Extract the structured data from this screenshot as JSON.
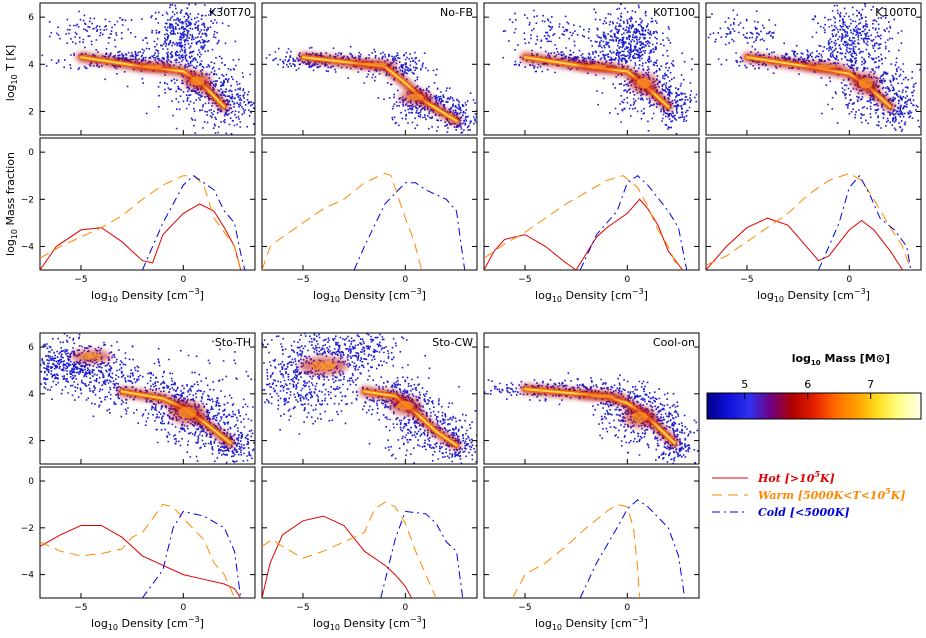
{
  "chart_data": {
    "type": "multi-panel",
    "xlabel_prefix": "log",
    "xlabel_sub": "10",
    "xlabel_main": " Density [cm",
    "xlabel_sup": "−3",
    "xlabel_close": "]",
    "ylabel_top": {
      "prefix": "log",
      "sub": "10",
      "main": " T [K]"
    },
    "ylabel_bottom": {
      "prefix": "log",
      "sub": "10",
      "main": " Mass fraction"
    },
    "xlim": [
      -7,
      3.5
    ],
    "phase_ylim": [
      1,
      6.6
    ],
    "frac_ylim": [
      -5,
      0.6
    ],
    "x_ticks": [
      -5,
      0
    ],
    "phase_y_ticks": [
      2,
      4,
      6
    ],
    "frac_y_ticks": [
      -4,
      -2,
      0
    ],
    "panels": [
      {
        "label": "K30T70",
        "row": 0,
        "col": 0,
        "hot": [
          [
            -7,
            -5
          ],
          [
            -6.2,
            -4
          ],
          [
            -5,
            -3.3
          ],
          [
            -4,
            -3.2
          ],
          [
            -3,
            -3.8
          ],
          [
            -2,
            -4.6
          ],
          [
            -1.5,
            -4.7
          ],
          [
            -1,
            -3.5
          ],
          [
            0,
            -2.6
          ],
          [
            0.8,
            -2.2
          ],
          [
            1.5,
            -2.5
          ],
          [
            2,
            -3.2
          ],
          [
            2.5,
            -4
          ],
          [
            2.8,
            -5
          ]
        ],
        "warm": [
          [
            -7,
            -4.5
          ],
          [
            -6,
            -4
          ],
          [
            -5,
            -3.6
          ],
          [
            -4,
            -3.2
          ],
          [
            -3,
            -2.7
          ],
          [
            -2,
            -2
          ],
          [
            -1,
            -1.4
          ],
          [
            0,
            -1
          ],
          [
            0.5,
            -1
          ],
          [
            1,
            -1.4
          ],
          [
            1.5,
            -2.8
          ],
          [
            2,
            -3.4
          ],
          [
            2.5,
            -4
          ],
          [
            2.8,
            -5
          ]
        ],
        "cold": [
          [
            -2,
            -5
          ],
          [
            -1,
            -3
          ],
          [
            0,
            -1.4
          ],
          [
            0.5,
            -1
          ],
          [
            1,
            -1.3
          ],
          [
            1.5,
            -1.6
          ],
          [
            2,
            -2.5
          ],
          [
            2.5,
            -3
          ],
          [
            2.8,
            -4.3
          ],
          [
            3,
            -5
          ]
        ]
      },
      {
        "label": "No-FB",
        "row": 0,
        "col": 1,
        "hot": [],
        "warm": [
          [
            -7,
            -5
          ],
          [
            -6.6,
            -4
          ],
          [
            -6,
            -3.6
          ],
          [
            -5,
            -3
          ],
          [
            -4,
            -2.4
          ],
          [
            -3,
            -2
          ],
          [
            -2,
            -1.3
          ],
          [
            -1,
            -0.9
          ],
          [
            -0.7,
            -1
          ],
          [
            0,
            -2.8
          ],
          [
            0.4,
            -3.7
          ],
          [
            0.8,
            -5
          ]
        ],
        "cold": [
          [
            -2.5,
            -5
          ],
          [
            -2,
            -4
          ],
          [
            -1,
            -2.2
          ],
          [
            0,
            -1.3
          ],
          [
            0.5,
            -1.3
          ],
          [
            1,
            -1.6
          ],
          [
            2,
            -2
          ],
          [
            2.5,
            -2.5
          ],
          [
            2.9,
            -5
          ]
        ]
      },
      {
        "label": "K0T100",
        "row": 0,
        "col": 2,
        "hot": [
          [
            -7,
            -5
          ],
          [
            -6.5,
            -4.2
          ],
          [
            -6,
            -3.7
          ],
          [
            -5,
            -3.5
          ],
          [
            -4,
            -4
          ],
          [
            -3,
            -4.7
          ],
          [
            -2.5,
            -5
          ],
          [
            -1.5,
            -3.6
          ],
          [
            -1,
            -3.2
          ],
          [
            0,
            -2.6
          ],
          [
            0.6,
            -2
          ],
          [
            1,
            -2.4
          ],
          [
            1.5,
            -3.1
          ],
          [
            2,
            -4.2
          ],
          [
            2.7,
            -5
          ]
        ],
        "warm": [
          [
            -7,
            -4.5
          ],
          [
            -6,
            -3.9
          ],
          [
            -5,
            -3.4
          ],
          [
            -4,
            -2.8
          ],
          [
            -3,
            -2.2
          ],
          [
            -2,
            -1.7
          ],
          [
            -1,
            -1.2
          ],
          [
            -0.2,
            -1
          ],
          [
            0.5,
            -1.5
          ],
          [
            1,
            -2.3
          ],
          [
            1.5,
            -3.3
          ],
          [
            2,
            -4
          ],
          [
            2.5,
            -5
          ]
        ],
        "cold": [
          [
            -2.3,
            -5
          ],
          [
            -1.5,
            -3.5
          ],
          [
            -0.5,
            -2.5
          ],
          [
            0,
            -1.3
          ],
          [
            0.5,
            -1
          ],
          [
            1,
            -1.4
          ],
          [
            2,
            -2.5
          ],
          [
            2.5,
            -3.2
          ],
          [
            2.9,
            -5
          ]
        ]
      },
      {
        "label": "K100T0",
        "row": 0,
        "col": 3,
        "hot": [
          [
            -7,
            -5
          ],
          [
            -6,
            -4
          ],
          [
            -5,
            -3.2
          ],
          [
            -4,
            -2.8
          ],
          [
            -3,
            -3.1
          ],
          [
            -2,
            -4.1
          ],
          [
            -1.5,
            -4.6
          ],
          [
            -1,
            -4.4
          ],
          [
            0,
            -3.3
          ],
          [
            0.6,
            -2.9
          ],
          [
            1.2,
            -3.3
          ],
          [
            2,
            -4.2
          ],
          [
            2.6,
            -5
          ]
        ],
        "warm": [
          [
            -7,
            -4.8
          ],
          [
            -6,
            -4.4
          ],
          [
            -5,
            -3.8
          ],
          [
            -4,
            -3.2
          ],
          [
            -3,
            -2.6
          ],
          [
            -2,
            -1.8
          ],
          [
            -1,
            -1.2
          ],
          [
            0,
            -0.9
          ],
          [
            0.6,
            -1.2
          ],
          [
            1.2,
            -2
          ],
          [
            2,
            -3.2
          ],
          [
            2.6,
            -4
          ],
          [
            3,
            -5
          ]
        ],
        "cold": [
          [
            -1.5,
            -5
          ],
          [
            -0.5,
            -3
          ],
          [
            0,
            -1.5
          ],
          [
            0.5,
            -1
          ],
          [
            1,
            -1.8
          ],
          [
            1.5,
            -2.8
          ],
          [
            2.2,
            -3.3
          ],
          [
            2.8,
            -4
          ],
          [
            3,
            -5
          ]
        ]
      },
      {
        "label": "Sto-TH",
        "row": 1,
        "col": 0,
        "hot": [
          [
            -7,
            -2.8
          ],
          [
            -6,
            -2.3
          ],
          [
            -5,
            -1.9
          ],
          [
            -4,
            -1.9
          ],
          [
            -3,
            -2.4
          ],
          [
            -2,
            -3.2
          ],
          [
            -1,
            -3.6
          ],
          [
            0,
            -4
          ],
          [
            1,
            -4.2
          ],
          [
            2,
            -4.4
          ],
          [
            2.5,
            -4.6
          ],
          [
            2.8,
            -5
          ]
        ],
        "warm": [
          [
            -7,
            -2.6
          ],
          [
            -6,
            -3
          ],
          [
            -5,
            -3.2
          ],
          [
            -4,
            -3.1
          ],
          [
            -3,
            -2.9
          ],
          [
            -2.5,
            -2.4
          ],
          [
            -2,
            -2.2
          ],
          [
            -1,
            -1
          ],
          [
            -0.5,
            -1.1
          ],
          [
            0,
            -1.6
          ],
          [
            1,
            -2.5
          ],
          [
            1.5,
            -3.5
          ],
          [
            2,
            -4
          ],
          [
            2.5,
            -5
          ]
        ],
        "cold": [
          [
            -2,
            -5
          ],
          [
            -1,
            -3.8
          ],
          [
            -0.5,
            -2
          ],
          [
            0,
            -1.3
          ],
          [
            1,
            -1.5
          ],
          [
            2,
            -2
          ],
          [
            2.5,
            -3
          ],
          [
            2.8,
            -5
          ]
        ]
      },
      {
        "label": "Sto-CW",
        "row": 1,
        "col": 1,
        "hot": [
          [
            -7,
            -5
          ],
          [
            -6.6,
            -3.5
          ],
          [
            -6,
            -2.3
          ],
          [
            -5,
            -1.7
          ],
          [
            -4,
            -1.5
          ],
          [
            -3,
            -1.9
          ],
          [
            -2,
            -3
          ],
          [
            -1,
            -3.6
          ],
          [
            -0.5,
            -4
          ],
          [
            0,
            -4.5
          ],
          [
            0.3,
            -5
          ]
        ],
        "warm": [
          [
            -7,
            -2.8
          ],
          [
            -6.5,
            -2.5
          ],
          [
            -6,
            -2.8
          ],
          [
            -5,
            -3.3
          ],
          [
            -4,
            -3
          ],
          [
            -3,
            -2.6
          ],
          [
            -2,
            -2.2
          ],
          [
            -1.5,
            -1.2
          ],
          [
            -1,
            -0.9
          ],
          [
            -0.5,
            -1.1
          ],
          [
            0,
            -1.8
          ],
          [
            0.5,
            -3
          ],
          [
            1,
            -4
          ],
          [
            1.5,
            -5
          ]
        ],
        "cold": [
          [
            -1.2,
            -5
          ],
          [
            -0.5,
            -2.5
          ],
          [
            0,
            -1.3
          ],
          [
            1,
            -1.4
          ],
          [
            1.5,
            -1.8
          ],
          [
            2,
            -2.6
          ],
          [
            2.5,
            -3
          ],
          [
            2.8,
            -5
          ]
        ]
      },
      {
        "label": "Cool-on",
        "row": 1,
        "col": 2,
        "hot": [],
        "warm": [
          [
            -5.6,
            -5
          ],
          [
            -5,
            -4
          ],
          [
            -4,
            -3.5
          ],
          [
            -3,
            -2.8
          ],
          [
            -2,
            -2
          ],
          [
            -1,
            -1.3
          ],
          [
            -0.5,
            -1
          ],
          [
            0,
            -1.1
          ],
          [
            0.3,
            -2
          ],
          [
            0.5,
            -3.7
          ],
          [
            0.6,
            -5
          ]
        ],
        "cold": [
          [
            -2.3,
            -5
          ],
          [
            -1.5,
            -3.5
          ],
          [
            -0.5,
            -2
          ],
          [
            0,
            -1.2
          ],
          [
            0.5,
            -0.8
          ],
          [
            1,
            -1.1
          ],
          [
            2,
            -2
          ],
          [
            2.5,
            -3.2
          ],
          [
            2.8,
            -5
          ]
        ]
      }
    ],
    "colorbar": {
      "title_prefix": "log",
      "title_sub": "10",
      "title_main": " Mass [M",
      "title_sun": "⊙",
      "title_close": "]",
      "range": [
        4.4,
        7.8
      ],
      "ticks": [
        5,
        6,
        7
      ],
      "stops": [
        "#00008b",
        "#1010d8",
        "#3030ee",
        "#700080",
        "#b00000",
        "#e52000",
        "#ff6a00",
        "#ffa000",
        "#ffe020",
        "#ffff8c",
        "#ffffe8"
      ]
    },
    "legend": [
      {
        "series": "hot",
        "text": "Hot [>10",
        "sup": "5",
        "tail": "K]",
        "color": "#e00000",
        "dash": ""
      },
      {
        "series": "warm",
        "text": "Warm [5000K<T<10",
        "sup": "5",
        "tail": "K]",
        "color": "#ff8800",
        "dash": "10,6"
      },
      {
        "series": "cold",
        "text": "Cold [<5000K]",
        "sup": "",
        "tail": "",
        "color": "#0000e0",
        "dash": "8,4,2,4"
      }
    ]
  }
}
